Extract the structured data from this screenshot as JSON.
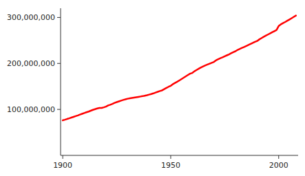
{
  "chart_data": {
    "type": "line",
    "x": [
      1900,
      1901,
      1902,
      1903,
      1904,
      1905,
      1906,
      1907,
      1908,
      1909,
      1910,
      1911,
      1912,
      1913,
      1914,
      1915,
      1916,
      1917,
      1918,
      1919,
      1920,
      1921,
      1922,
      1923,
      1924,
      1925,
      1926,
      1927,
      1928,
      1929,
      1930,
      1931,
      1932,
      1933,
      1934,
      1935,
      1936,
      1937,
      1938,
      1939,
      1940,
      1941,
      1942,
      1943,
      1944,
      1945,
      1946,
      1947,
      1948,
      1949,
      1950,
      1951,
      1952,
      1953,
      1954,
      1955,
      1956,
      1957,
      1958,
      1959,
      1960,
      1961,
      1962,
      1963,
      1964,
      1965,
      1966,
      1967,
      1968,
      1969,
      1970,
      1971,
      1972,
      1973,
      1974,
      1975,
      1976,
      1977,
      1978,
      1979,
      1980,
      1981,
      1982,
      1983,
      1984,
      1985,
      1986,
      1987,
      1988,
      1989,
      1990,
      1991,
      1992,
      1993,
      1994,
      1995,
      1996,
      1997,
      1998,
      1999,
      2000,
      2001,
      2002,
      2003,
      2004,
      2005,
      2006,
      2007,
      2008
    ],
    "values": [
      76212168,
      77584000,
      79160000,
      80632000,
      82166000,
      83820000,
      85437000,
      87000000,
      88709000,
      90490000,
      92228496,
      93863000,
      95335000,
      97225000,
      99111000,
      100549000,
      101966000,
      103268000,
      103208000,
      104514000,
      106021537,
      108538000,
      110049000,
      111947000,
      114109000,
      115829000,
      117397000,
      119035000,
      120509000,
      121767000,
      123202624,
      124039000,
      124840000,
      125578000,
      126373000,
      127250000,
      128053000,
      128824000,
      129824000,
      130879000,
      132164569,
      133402000,
      134859000,
      136739000,
      138397000,
      139928000,
      141388000,
      144126000,
      146631000,
      149188000,
      151325798,
      154877000,
      157552000,
      160184000,
      163026000,
      165931000,
      168903000,
      171984000,
      174882000,
      177829000,
      179323175,
      182992000,
      185771000,
      188483000,
      191141000,
      193526000,
      195576000,
      197457000,
      199399000,
      201385000,
      203211926,
      206827000,
      209284000,
      211357000,
      213342000,
      215465000,
      217563000,
      219760000,
      222095000,
      224567000,
      226545805,
      229466000,
      231664000,
      233792000,
      235825000,
      237924000,
      240133000,
      242289000,
      244499000,
      246819000,
      248709873,
      252153000,
      255030000,
      257783000,
      260327000,
      262803000,
      265229000,
      267784000,
      270248000,
      272691000,
      281421906,
      284968955,
      287625193,
      290107933,
      292805298,
      295516599,
      298379912,
      301231207,
      304059724
    ],
    "color": "#ff0000",
    "xlim": [
      1899,
      2009
    ],
    "ylim": [
      0,
      320000000
    ],
    "xticks": [
      1900,
      1950,
      2000
    ],
    "yticks": [
      {
        "value": 100000000,
        "label": "100,000,000"
      },
      {
        "value": 200000000,
        "label": "200,000,000"
      },
      {
        "value": 300000000,
        "label": "300,000,000"
      }
    ]
  }
}
